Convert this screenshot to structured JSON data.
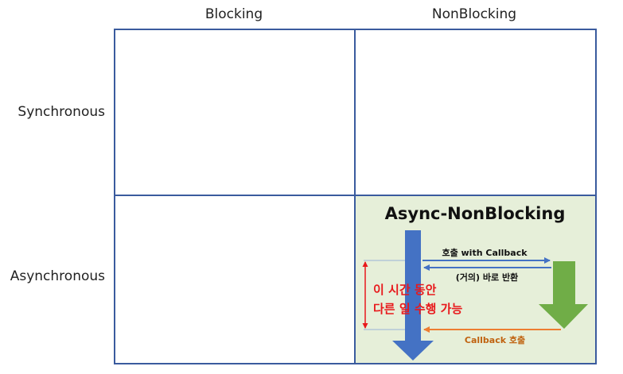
{
  "columns": {
    "blocking": "Blocking",
    "nonblocking": "NonBlocking"
  },
  "rows": {
    "synchronous": "Synchronous",
    "asynchronous": "Asynchronous"
  },
  "async_nonblocking": {
    "title": "Async-NonBlocking",
    "call_with_callback": "호출 with Callback",
    "immediate_return": "(거의) 바로 반환",
    "callback_call": "Callback 호출",
    "free_time_line1": "이 시간 동안",
    "free_time_line2": "다른 일 수행 가능"
  },
  "colors": {
    "grid_border": "#3a5b9e",
    "cell_highlight": "#e6efd9",
    "caller_arrow": "#4472c4",
    "callee_arrow": "#70ad47",
    "callback_arrow": "#ed7d31",
    "emphasis_text": "#e8191c"
  }
}
